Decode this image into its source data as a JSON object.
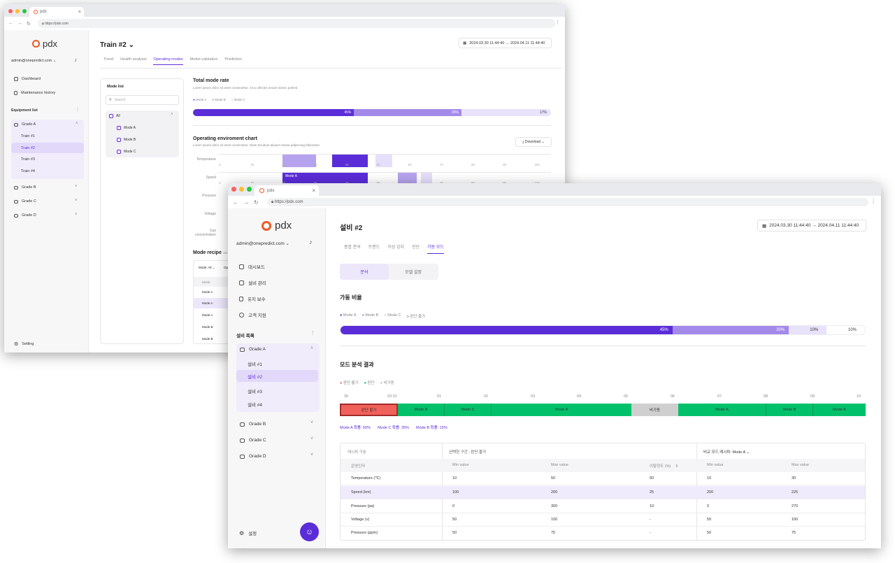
{
  "w1": {
    "tab": "pdx",
    "url": "https://pdx.com",
    "logo": "pdx",
    "user": "admin@onepredict.com",
    "nav": [
      "Dashboard",
      "Maintenance history"
    ],
    "equip_label": "Equipment list",
    "grades": [
      "Grade A",
      "Grade B",
      "Grade C",
      "Grade D"
    ],
    "trains": [
      "Train #1",
      "Train #2",
      "Train #3",
      "Train #4"
    ],
    "setting": "Setting",
    "title": "Train #2",
    "date_from": "2024.03.30  11:44:40",
    "date_to": "2024.04.11  11:44:40",
    "tabs": [
      "Trend",
      "Health analysis",
      "Operating modes",
      "Model validation",
      "Prediction"
    ],
    "mode_list": "Mode list",
    "search_ph": "Search",
    "modes": [
      "All",
      "Mode A",
      "Mode B",
      "Mode C"
    ],
    "tmr_title": "Total mode rate",
    "tmr_desc": "Lorem ipsum dolor sit amet consectetur. Arcu ultricies ornare donec potenti.",
    "legend": [
      "Mode A",
      "Mode B",
      "Mode C"
    ],
    "bar": [
      "45%",
      "30%",
      "17%"
    ],
    "oec_title": "Operating enviroment chart",
    "oec_desc": "Lorem ipsum dolor sit amet consectetur. Diam tincidunt aliquet massa adipiscing bibendum.",
    "download": "Download",
    "rows": [
      "Temperature",
      "Speed",
      "Pressure",
      "Voltage",
      "Gas concentration"
    ],
    "ticks": [
      "0",
      "10",
      "20",
      "30",
      "40",
      "50",
      "60",
      "70",
      "80",
      "90",
      "100"
    ],
    "mode_a_label": "Mode A",
    "recipe": "Mode recipe",
    "recipe_sub": "old S",
    "mode_filter": "Mode: All",
    "op": "Op",
    "recipe_col": "Mode",
    "recipe_rows": [
      "Mode A",
      "Mode A",
      "Mode A",
      "Mode B",
      "Mode B"
    ]
  },
  "w2": {
    "tab": "pdx",
    "url": "https://pdx.com",
    "logo": "pdx",
    "user": "admin@onepredict.com",
    "nav": [
      "대시보드",
      "설비 관리",
      "유지 보수",
      "고객 지원"
    ],
    "equip_label": "설비 목록",
    "grades": [
      "Grade A",
      "Grade B",
      "Grade C",
      "Grade D"
    ],
    "equips": [
      "설비 #1",
      "설비 #2",
      "설비 #3",
      "설비 #4"
    ],
    "setting": "설정",
    "title": "설비 #2",
    "date_from": "2024.03.30  11:44:40",
    "date_to": "2024.04.11  11:44:40",
    "tabs": [
      "종합 분석",
      "트렌드",
      "이상 감지",
      "진단",
      "가동 모드"
    ],
    "sub_tabs": [
      "분석",
      "모델 설정"
    ],
    "rate_title": "가동 비율",
    "legend": [
      "Mode A",
      "Mode B",
      "Mode C",
      "판단 불가"
    ],
    "bar": [
      "45%",
      "30%",
      "10%",
      "10%"
    ],
    "result_title": "모드 분석 결과",
    "legend2": [
      "판단 불가",
      "판단",
      "비가동"
    ],
    "days": [
      "30",
      "03.31",
      "01",
      "02",
      "03",
      "04",
      "05",
      "06",
      "07",
      "08",
      "09",
      "10"
    ],
    "timeline": [
      "판단 불가",
      "Mode B",
      "Mode C",
      "Mode A",
      "비가동",
      "Mode A",
      "Mode B",
      "Mode B"
    ],
    "probs": [
      "Mode A 확률: 50%",
      "Mode C 확률: 35%",
      "Mode B 확률: 15%"
    ],
    "table_head": [
      "레시피 구분",
      "선택한 구간 : 판단 불가",
      "비교 모드 레시피: Mode A"
    ],
    "cols": [
      "운영인자",
      "Min value",
      "Max value",
      "이탈정도 (%)",
      "Min value",
      "Max value"
    ],
    "rows": [
      [
        "Temperature (℃)",
        "10",
        "50",
        "50",
        "10",
        "30"
      ],
      [
        "Speed (km)",
        "100",
        "200",
        "25",
        "200",
        "225"
      ],
      [
        "Pressure (pa)",
        "0",
        "300",
        "10",
        "0",
        "270"
      ],
      [
        "Voltage (v)",
        "50",
        "100",
        "-",
        "50",
        "100"
      ],
      [
        "Pressure (ppm)",
        "50",
        "75",
        "-",
        "50",
        "75"
      ]
    ]
  },
  "colors": {
    "accent": "#5b2dd8",
    "accent2": "#a48ae8",
    "accent3": "#e4dcf9",
    "green": "#00c16a",
    "red": "#f0615a",
    "gray": "#cfcfcf",
    "orange": "#f15a24"
  }
}
